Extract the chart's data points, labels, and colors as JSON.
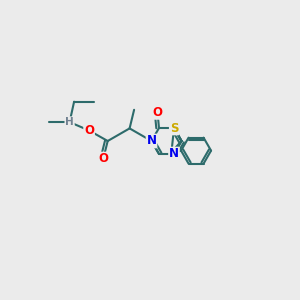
{
  "background_color": "#ebebeb",
  "bond_color": "#2d6b6b",
  "bond_width": 1.5,
  "atom_colors": {
    "O": "#ff0000",
    "N": "#0000ee",
    "S": "#ccaa00",
    "H": "#708090",
    "C": "#2d6b6b"
  },
  "font_size": 8.5
}
